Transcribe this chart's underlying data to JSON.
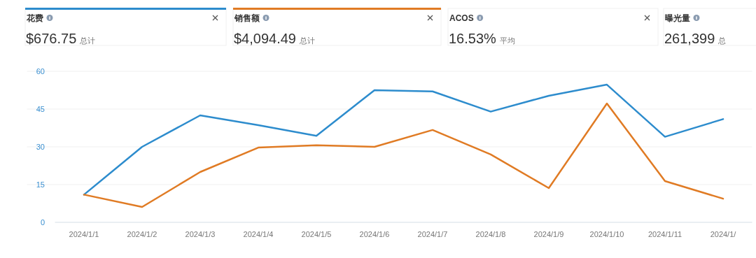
{
  "chart_data": [
    {
      "type": "other",
      "title": "花费",
      "annotations": [
        "$676.75",
        "总计"
      ],
      "color": "#2d8ccd"
    },
    {
      "type": "other",
      "title": "销售额",
      "annotations": [
        "$4,094.49",
        "总计"
      ],
      "color": "#e07b24"
    },
    {
      "type": "other",
      "title": "ACOS",
      "annotations": [
        "16.53%",
        "平均"
      ]
    },
    {
      "type": "other",
      "title": "曝光量",
      "annotations": [
        "261,399",
        "总"
      ]
    },
    {
      "type": "line",
      "categories": [
        "2024/1/1",
        "2024/1/2",
        "2024/1/3",
        "2024/1/4",
        "2024/1/5",
        "2024/1/6",
        "2024/1/7",
        "2024/1/8",
        "2024/1/9",
        "2024/1/10",
        "2024/1/11",
        "2024/1/"
      ],
      "series": [
        {
          "color": "#2d8ccd",
          "values": [
            11,
            30,
            42.5,
            38.6,
            34.4,
            52.5,
            52,
            44,
            50.3,
            54.7,
            34,
            41
          ]
        },
        {
          "color": "#e07b24",
          "values": [
            11,
            6.1,
            20,
            29.7,
            30.6,
            30,
            36.7,
            27,
            13.6,
            47.2,
            16.4,
            9.4
          ]
        }
      ],
      "ylim": [
        0,
        60
      ],
      "yticks": [
        0,
        15,
        30,
        45,
        60
      ],
      "grid": "y",
      "marker": "none",
      "line_style": "solid"
    }
  ]
}
